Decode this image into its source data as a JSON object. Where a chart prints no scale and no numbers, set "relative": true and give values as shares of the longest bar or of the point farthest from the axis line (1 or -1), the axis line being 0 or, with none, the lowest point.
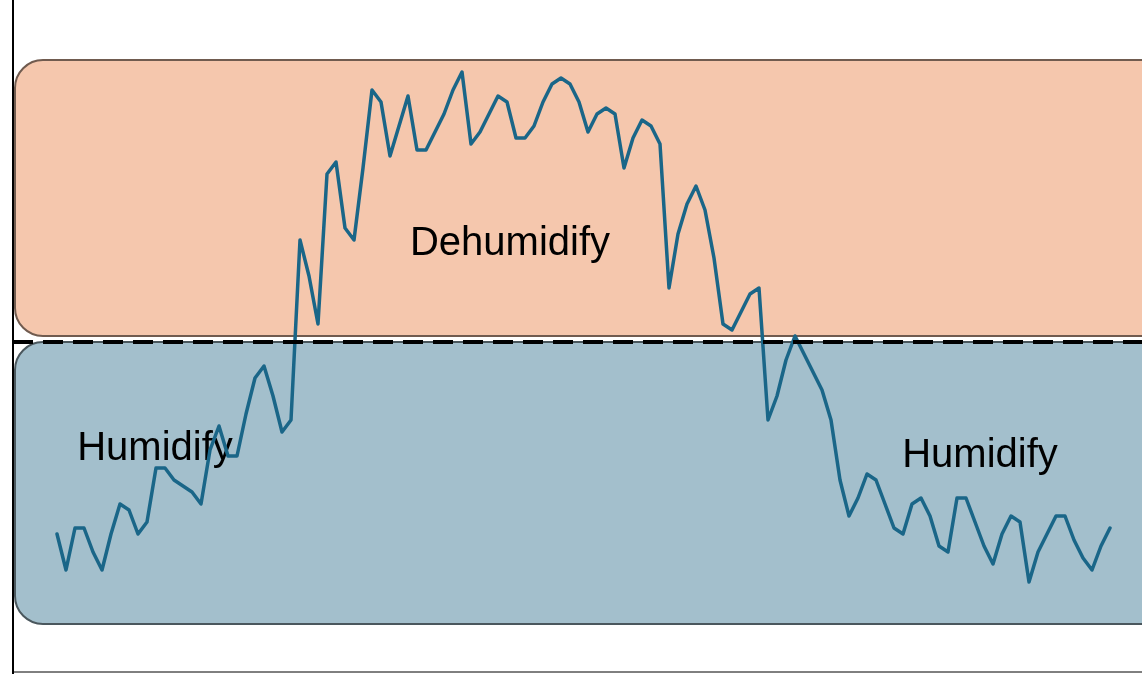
{
  "chart_data": {
    "type": "line",
    "relative": true,
    "marker": "none",
    "line_style": "solid",
    "categories": [
      null,
      null,
      null,
      null,
      null,
      null,
      null,
      null,
      null,
      null,
      null,
      null,
      null,
      null,
      null,
      null,
      null,
      null,
      null,
      null,
      null,
      null,
      null,
      null,
      null,
      null,
      null,
      null,
      null,
      null,
      null,
      null,
      null,
      null,
      null,
      null,
      null,
      null,
      null,
      null,
      null,
      null,
      null,
      null,
      null,
      null,
      null,
      null,
      null,
      null,
      null,
      null,
      null,
      null,
      null,
      null,
      null,
      null,
      null,
      null,
      null,
      null,
      null,
      null,
      null,
      null,
      null,
      null,
      null,
      null,
      null,
      null,
      null,
      null,
      null,
      null,
      null,
      null,
      null,
      null,
      null,
      null,
      null,
      null,
      null,
      null,
      null,
      null,
      null,
      null,
      null,
      null,
      null,
      null,
      null,
      null,
      null,
      null,
      null,
      null,
      null,
      null,
      null,
      null,
      null,
      null,
      null,
      null,
      null,
      null,
      null,
      null,
      null,
      null,
      null,
      null,
      null,
      null
    ],
    "series": [
      {
        "color": "#1a6688",
        "values": [
          0.23,
          0.17,
          0.24,
          0.24,
          0.2,
          0.17,
          0.23,
          0.28,
          0.27,
          0.23,
          0.25,
          0.34,
          0.34,
          0.32,
          0.31,
          0.3,
          0.28,
          0.37,
          0.41,
          0.36,
          0.36,
          0.43,
          0.49,
          0.51,
          0.46,
          0.4,
          0.42,
          0.72,
          0.66,
          0.58,
          0.83,
          0.85,
          0.74,
          0.72,
          0.84,
          0.97,
          0.95,
          0.86,
          0.91,
          0.96,
          0.87,
          0.87,
          0.9,
          0.93,
          0.97,
          1.0,
          0.88,
          0.9,
          0.93,
          0.96,
          0.95,
          0.89,
          0.89,
          0.91,
          0.95,
          0.98,
          0.99,
          0.98,
          0.95,
          0.9,
          0.93,
          0.94,
          0.93,
          0.84,
          0.89,
          0.92,
          0.91,
          0.88,
          0.64,
          0.73,
          0.78,
          0.81,
          0.77,
          0.69,
          0.58,
          0.57,
          0.6,
          0.63,
          0.64,
          0.42,
          0.46,
          0.52,
          0.56,
          0.53,
          0.5,
          0.47,
          0.42,
          0.32,
          0.26,
          0.29,
          0.33,
          0.32,
          0.28,
          0.24,
          0.23,
          0.28,
          0.29,
          0.26,
          0.21,
          0.2,
          0.29,
          0.29,
          0.25,
          0.21,
          0.18,
          0.23,
          0.26,
          0.25,
          0.15,
          0.2,
          0.23,
          0.26,
          0.26,
          0.22,
          0.19,
          0.17,
          0.21,
          0.24
        ]
      }
    ],
    "ref_lines": [
      {
        "axis": "y",
        "value": 0.55,
        "color": "#000000",
        "line_style": "dashed"
      }
    ],
    "bands": [
      {
        "axis": "y",
        "from": 0.56,
        "to": 1.02,
        "label": "Dehumidify",
        "color": "#f5c7ad"
      },
      {
        "axis": "y",
        "from": 0.08,
        "to": 0.55,
        "label": "Humidify",
        "color": "#a3bfcc"
      }
    ],
    "annotations": [
      "Humidify"
    ]
  }
}
